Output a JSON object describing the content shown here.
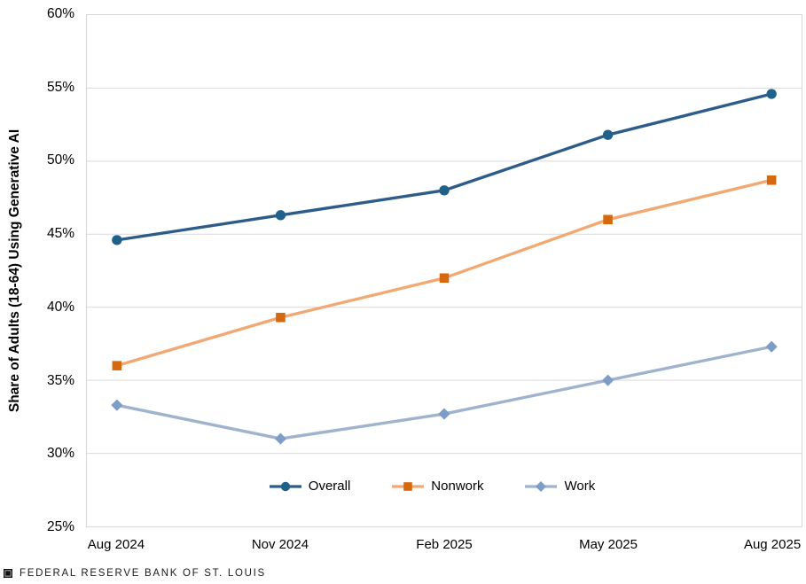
{
  "chart_data": {
    "type": "line",
    "title": "",
    "categories": [
      "Aug 2024",
      "Nov 2024",
      "Feb 2025",
      "May 2025",
      "Aug 2025"
    ],
    "series": [
      {
        "name": "Overall",
        "values": [
          44.6,
          46.3,
          48.0,
          51.8,
          54.6
        ],
        "line_color": "#2E5C8A",
        "marker_color": "#1F6189",
        "marker": "circle"
      },
      {
        "name": "Nonwork",
        "values": [
          36.0,
          39.3,
          42.0,
          46.0,
          48.7
        ],
        "line_color": "#F2A873",
        "marker_color": "#D6690D",
        "marker": "square"
      },
      {
        "name": "Work",
        "values": [
          33.3,
          31.0,
          32.7,
          35.0,
          37.3
        ],
        "line_color": "#9FB2CE",
        "marker_color": "#7E9DC6",
        "marker": "diamond"
      }
    ],
    "xlabel": "",
    "ylabel": "Share of Adults (18-64) Using Generative AI",
    "ylim": [
      25,
      60
    ],
    "y_ticks": [
      60,
      55,
      50,
      45,
      40,
      35,
      30,
      25
    ],
    "y_tick_suffix": "%",
    "grid": "horizontal",
    "legend_position": "bottom-center-inside"
  },
  "colors": {
    "gridline": "#D9D9D9",
    "plot_border": "#D7D7D7",
    "text": "#000000",
    "footer_text": "#1A1A1A"
  },
  "footer": {
    "logo_icon": "stlouisfed-square-logo",
    "source": "FEDERAL RESERVE BANK OF ST. LOUIS"
  }
}
